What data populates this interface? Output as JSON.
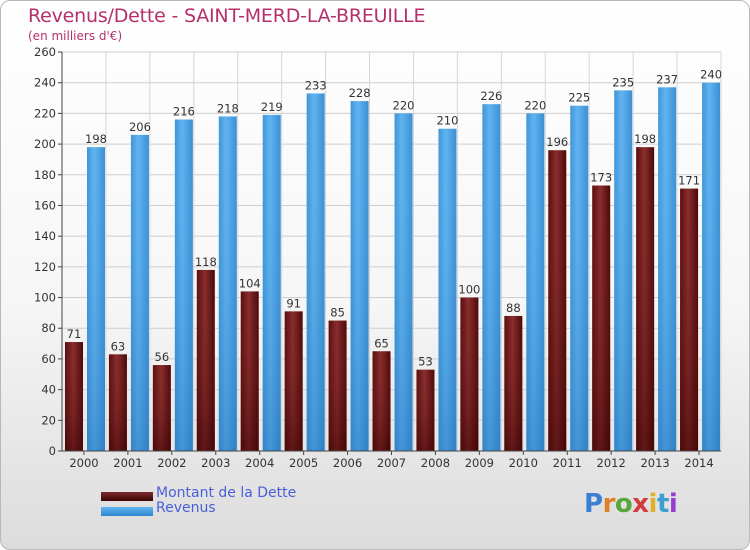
{
  "title": "Revenus/Dette - SAINT-MERD-LA-BREUILLE",
  "subtitle": "(en milliers d'€)",
  "logo_text": "Proxiti",
  "colors": {
    "debt_top": "#8a2e2e",
    "debt_bottom": "#3e0404",
    "revenue_top": "#62b4f0",
    "revenue_bottom": "#2f87cf",
    "title": "#b5306a",
    "legend_text": "#4a5fd8"
  },
  "chart_data": {
    "type": "bar",
    "categories": [
      "2000",
      "2001",
      "2002",
      "2003",
      "2004",
      "2005",
      "2006",
      "2007",
      "2008",
      "2009",
      "2010",
      "2011",
      "2012",
      "2013",
      "2014"
    ],
    "series": [
      {
        "name": "Montant de la Dette",
        "values": [
          71,
          63,
          56,
          118,
          104,
          91,
          85,
          65,
          53,
          100,
          88,
          196,
          173,
          198,
          171
        ]
      },
      {
        "name": "Revenus",
        "values": [
          198,
          206,
          216,
          218,
          219,
          233,
          228,
          220,
          210,
          226,
          220,
          225,
          235,
          237,
          240
        ]
      }
    ],
    "ylim": [
      0,
      260
    ],
    "yticks": [
      0,
      20,
      40,
      60,
      80,
      100,
      120,
      140,
      160,
      180,
      200,
      220,
      240,
      260
    ],
    "grid": true,
    "legend_position": "bottom-left"
  }
}
